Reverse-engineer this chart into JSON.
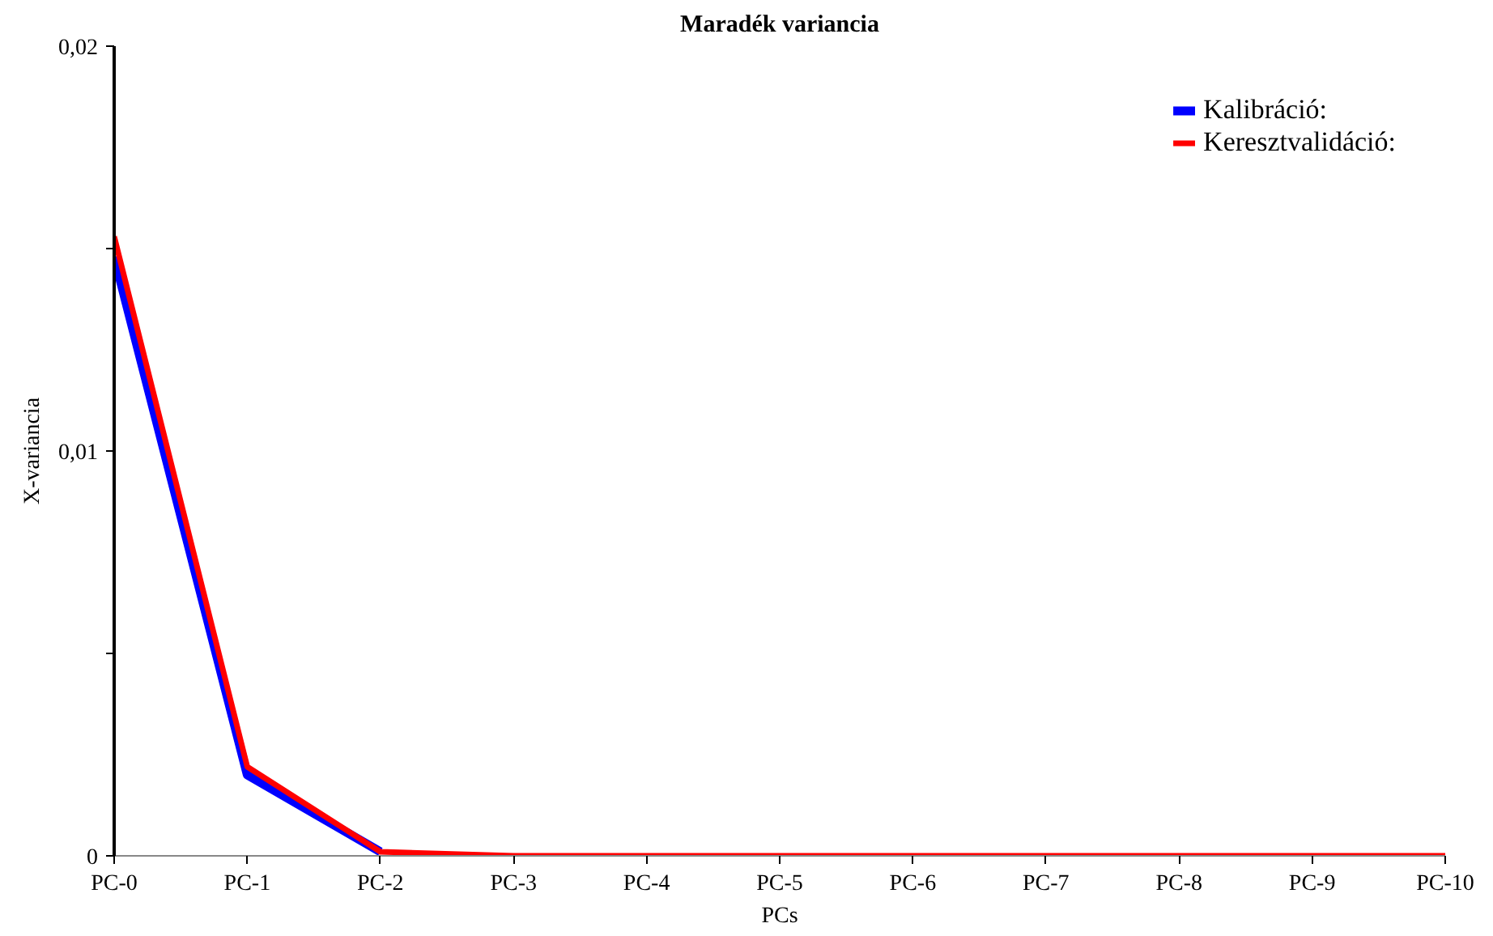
{
  "chart_data": {
    "type": "line",
    "title": "Maradék variancia",
    "xlabel": "PCs",
    "ylabel": "X-variancia",
    "categories": [
      "PC-0",
      "PC-1",
      "PC-2",
      "PC-3",
      "PC-4",
      "PC-5",
      "PC-6",
      "PC-7",
      "PC-8",
      "PC-9",
      "PC-10"
    ],
    "series": [
      {
        "name": "Kalibráció:",
        "color": "#0000ff",
        "values": [
          0.0148,
          0.002,
          0.0001,
          null,
          null,
          null,
          null,
          null,
          null,
          null,
          null
        ]
      },
      {
        "name": "Keresztvalidáció:",
        "color": "#ff0000",
        "values": [
          0.0153,
          0.0022,
          0.0001,
          0,
          0,
          0,
          0,
          0,
          0,
          0,
          0
        ]
      }
    ],
    "ylim": [
      0,
      0.02
    ],
    "yticks": [
      0,
      {
        "value": 0.005,
        "label": null
      },
      {
        "value": 0.01,
        "label": "0,01"
      },
      {
        "value": 0.015,
        "label": null
      },
      {
        "value": 0.02,
        "label": "0,02"
      }
    ],
    "grid": false,
    "legend": "top right",
    "marker": "none",
    "line_style": "solid"
  }
}
